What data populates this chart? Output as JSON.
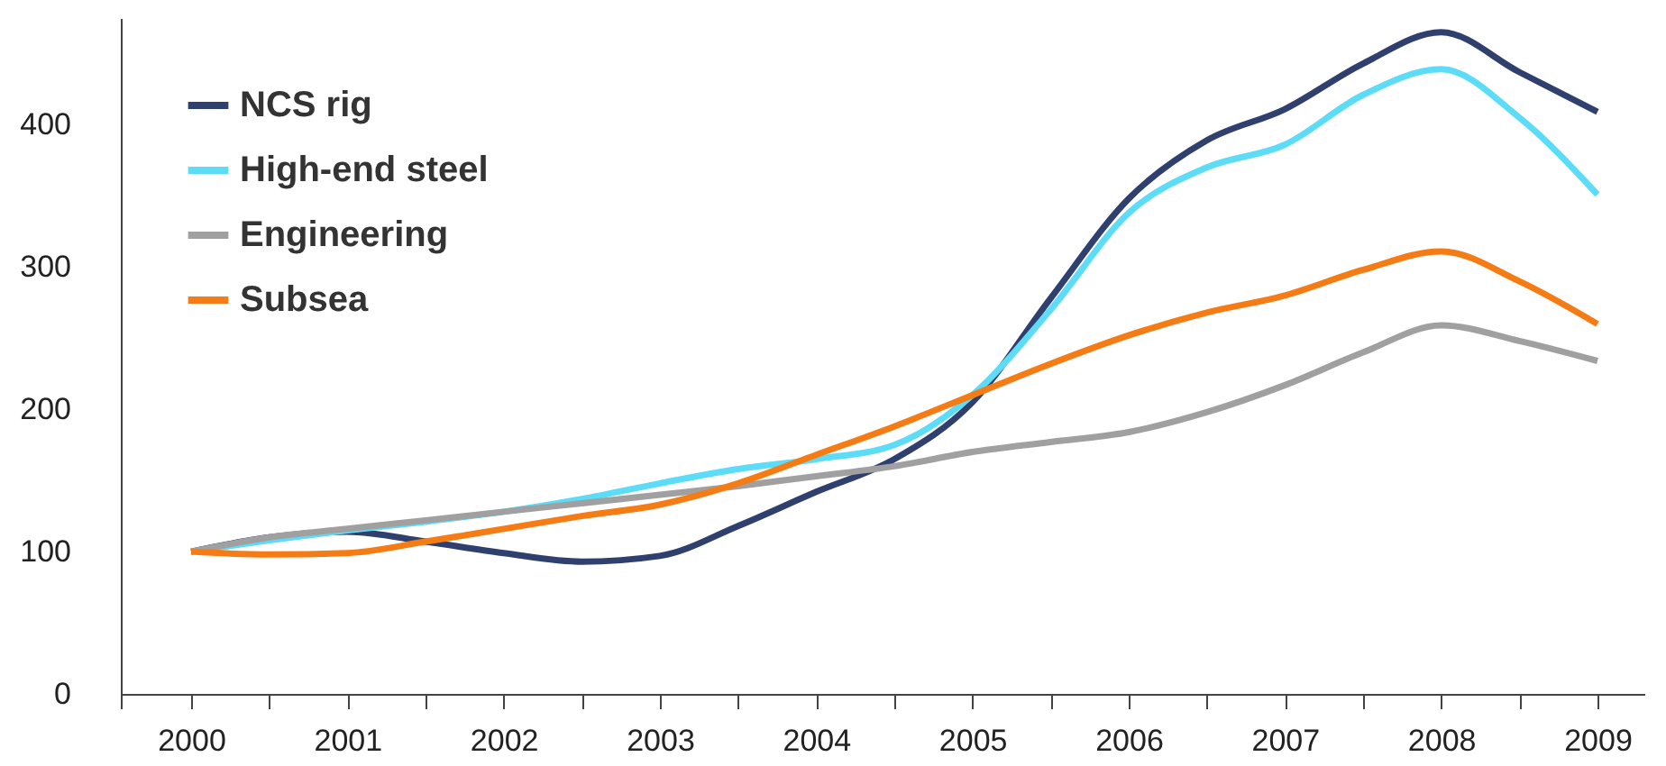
{
  "chart_data": {
    "type": "line",
    "x": [
      2000,
      2000.5,
      2001,
      2001.5,
      2002,
      2002.5,
      2003,
      2003.5,
      2004,
      2004.5,
      2005,
      2005.5,
      2006,
      2006.5,
      2007,
      2007.5,
      2008,
      2008.5,
      2009
    ],
    "series": [
      {
        "name": "NCS rig",
        "color": "#2f3f6e",
        "values": [
          100,
          110,
          114,
          107,
          99,
          93,
          97,
          118,
          142,
          165,
          205,
          278,
          348,
          389,
          411,
          443,
          465,
          437,
          409
        ]
      },
      {
        "name": "High-end steel",
        "color": "#5cdcf7",
        "values": [
          100,
          108,
          115,
          121,
          128,
          137,
          148,
          158,
          165,
          175,
          210,
          270,
          338,
          370,
          386,
          421,
          439,
          405,
          351
        ]
      },
      {
        "name": "Engineering",
        "color": "#a0a0a0",
        "values": [
          100,
          110,
          116,
          122,
          128,
          134,
          140,
          146,
          153,
          160,
          170,
          177,
          184,
          198,
          217,
          240,
          259,
          248,
          234
        ]
      },
      {
        "name": "Subsea",
        "color": "#f57c14",
        "values": [
          100,
          98,
          99,
          107,
          116,
          125,
          133,
          148,
          168,
          188,
          210,
          232,
          252,
          268,
          280,
          298,
          311,
          290,
          260
        ]
      }
    ],
    "xlim": [
      1999.55,
      2009.3
    ],
    "ylim": [
      0,
      475
    ],
    "yticks": [
      0,
      100,
      200,
      300,
      400
    ],
    "xticks": [
      {
        "value": 1999.55,
        "label": null
      },
      2000,
      {
        "value": 2000.5,
        "label": null
      },
      2001,
      {
        "value": 2001.5,
        "label": null
      },
      2002,
      {
        "value": 2002.5,
        "label": null
      },
      2003,
      {
        "value": 2003.5,
        "label": null
      },
      2004,
      {
        "value": 2004.5,
        "label": null
      },
      2005,
      {
        "value": 2005.5,
        "label": null
      },
      2006,
      {
        "value": 2006.5,
        "label": null
      },
      2007,
      {
        "value": 2007.5,
        "label": null
      },
      2008,
      {
        "value": 2008.5,
        "label": null
      },
      2009
    ],
    "legend": "top left",
    "grid": false,
    "marker": "none",
    "line_style": "solid"
  }
}
